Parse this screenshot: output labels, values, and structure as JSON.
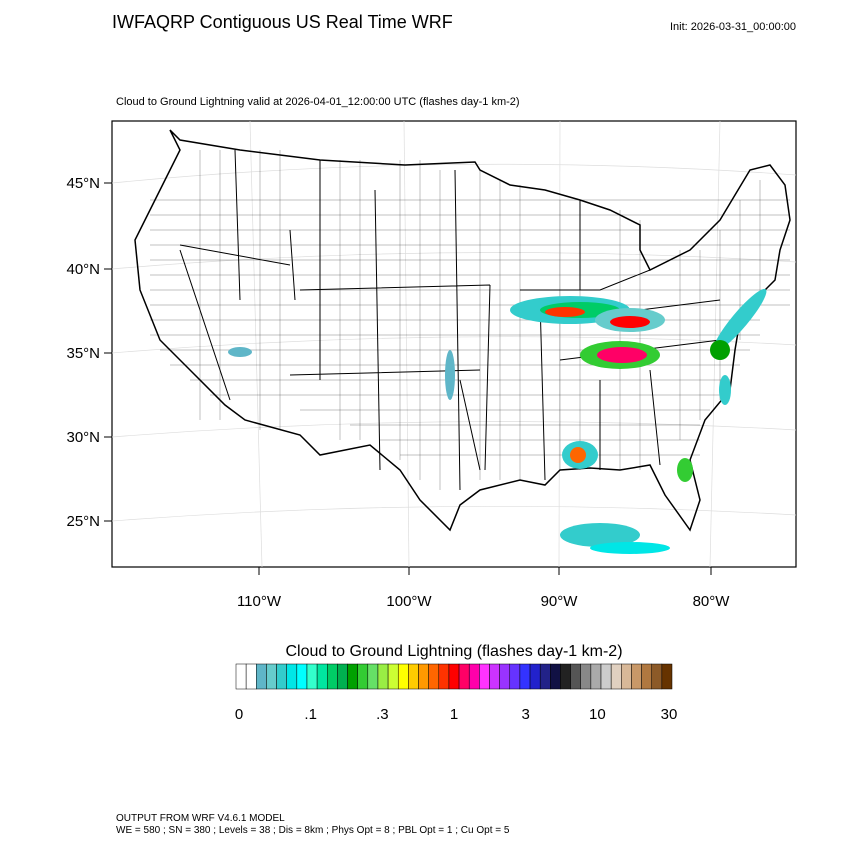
{
  "header": {
    "title": "IWFAQRP Contiguous US Real Time WRF",
    "init": "Init: 2026-03-31_00:00:00",
    "subtitle": "Cloud to Ground Lightning valid at 2026-04-01_12:00:00 UTC   (flashes day-1 km-2)"
  },
  "map": {
    "lat_labels": [
      "45°N",
      "40°N",
      "35°N",
      "30°N",
      "25°N"
    ],
    "lon_labels": [
      "110°W",
      "100°W",
      "90°W",
      "80°W"
    ]
  },
  "colorbar": {
    "title": "Cloud to Ground Lightning  (flashes day-1 km-2)",
    "labels": [
      "0",
      ".1",
      ".3",
      "1",
      "3",
      "10",
      "30"
    ],
    "colors": [
      "#ffffff",
      "#ffffff",
      "#5fb6c8",
      "#66cccc",
      "#33cccc",
      "#00e6e6",
      "#00ffff",
      "#33ffcc",
      "#00e6a0",
      "#00cc66",
      "#00b050",
      "#00a000",
      "#33cc33",
      "#66e066",
      "#99ee44",
      "#ccff33",
      "#ffff00",
      "#ffcc00",
      "#ff9900",
      "#ff6600",
      "#ff3300",
      "#ff0000",
      "#ff0066",
      "#ff00aa",
      "#ff33ff",
      "#cc33ff",
      "#9933ff",
      "#6633ff",
      "#3333ff",
      "#2222cc",
      "#222288",
      "#111144",
      "#222222",
      "#555555",
      "#888888",
      "#aaaaaa",
      "#cccccc",
      "#e0d0c0",
      "#d8b898",
      "#c89868",
      "#b07840",
      "#8c5a28",
      "#663300"
    ]
  },
  "footer": {
    "line1": "OUTPUT FROM WRF V4.6.1 MODEL",
    "line2": "WE = 580 ; SN = 380 ; Levels = 38 ; Dis = 8km ; Phys Opt = 8 ; PBL Opt = 1 ; Cu Opt = 5"
  }
}
